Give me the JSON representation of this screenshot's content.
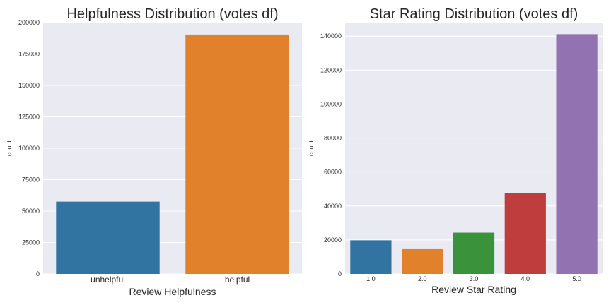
{
  "chart_data": [
    {
      "type": "bar",
      "title": "Helpfulness Distribution (votes df)",
      "xlabel": "Review Helpfulness",
      "ylabel": "count",
      "categories": [
        "unhelpful",
        "helpful"
      ],
      "values": [
        57500,
        190500
      ],
      "ylim": [
        0,
        200000
      ],
      "yticks": [
        "0",
        "25000",
        "50000",
        "75000",
        "100000",
        "125000",
        "150000",
        "175000",
        "200000"
      ],
      "colors": [
        "#3274a1",
        "#e1812c"
      ],
      "grid": true
    },
    {
      "type": "bar",
      "title": "Star Rating Distribution (votes df)",
      "xlabel": "Review Star Rating",
      "ylabel": "count",
      "categories": [
        "1.0",
        "2.0",
        "3.0",
        "4.0",
        "5.0"
      ],
      "values": [
        19800,
        15000,
        24300,
        47700,
        141200
      ],
      "ylim": [
        0,
        148000
      ],
      "yticks": [
        "0",
        "20000",
        "40000",
        "60000",
        "80000",
        "100000",
        "120000",
        "140000"
      ],
      "colors": [
        "#3274a1",
        "#e1812c",
        "#3a923a",
        "#c03d3e",
        "#9372b2"
      ],
      "grid": true
    }
  ]
}
